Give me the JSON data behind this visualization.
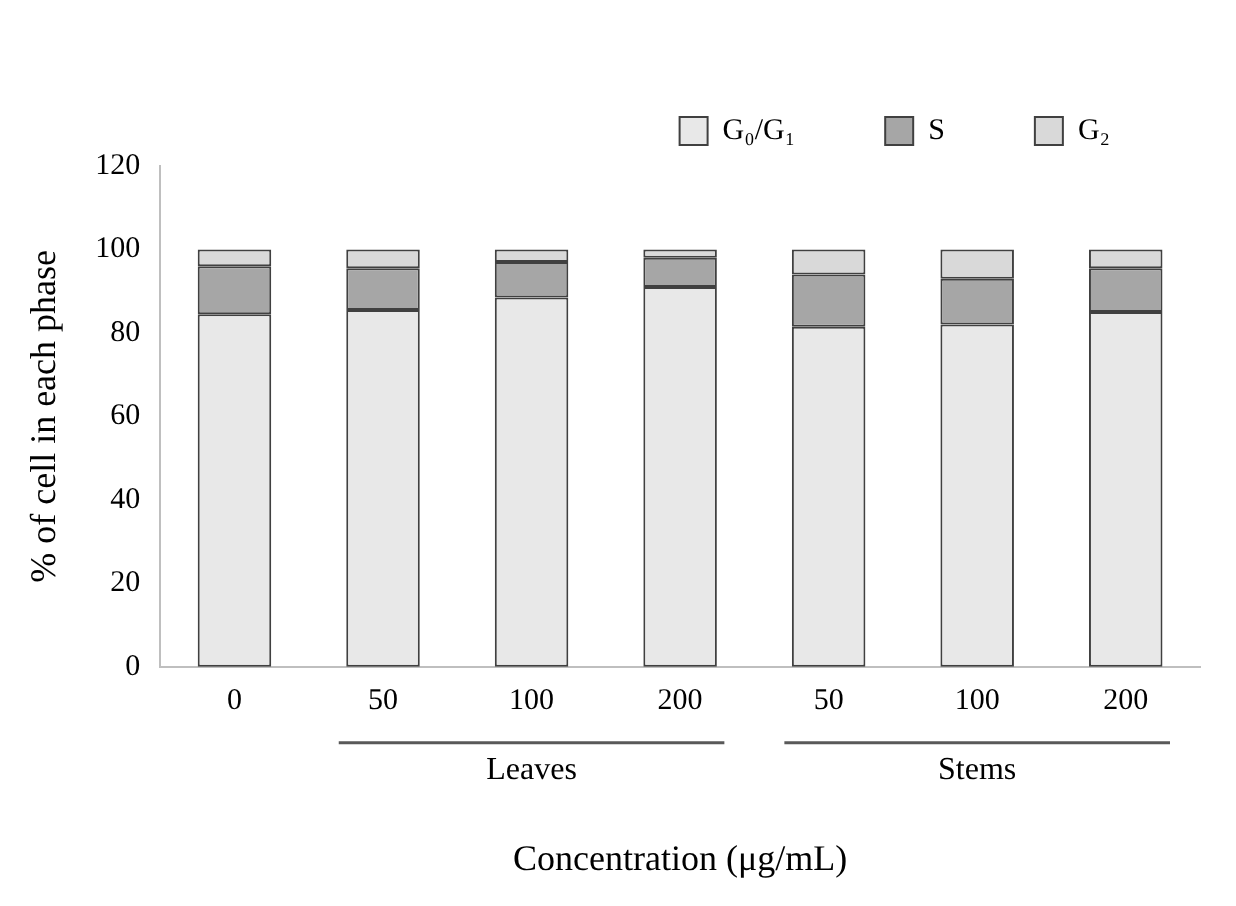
{
  "chart_data": {
    "type": "bar",
    "stacked": true,
    "xlabel": "Concentration (μg/mL)",
    "ylabel": "% of cell in each phase",
    "categories": [
      "0",
      "50",
      "100",
      "200",
      "50",
      "100",
      "200"
    ],
    "series": [
      {
        "name": "G₀/G₁",
        "color": "#e8e8e8",
        "values": [
          84.5,
          85.5,
          88.5,
          91,
          81.5,
          82,
          85
        ]
      },
      {
        "name": "S",
        "color": "#a6a6a6",
        "values": [
          11.5,
          10,
          8.5,
          7,
          12.5,
          11,
          10.5
        ]
      },
      {
        "name": "G₂",
        "color": "#d9d9d9",
        "values": [
          4,
          4.5,
          3,
          2,
          6,
          7,
          4.5
        ]
      }
    ],
    "ylim": [
      0,
      120
    ],
    "yticks": [
      0,
      20,
      40,
      60,
      80,
      100,
      120
    ],
    "grid": false,
    "legend": "top",
    "annotations": [
      "Leaves",
      "Stems"
    ]
  }
}
